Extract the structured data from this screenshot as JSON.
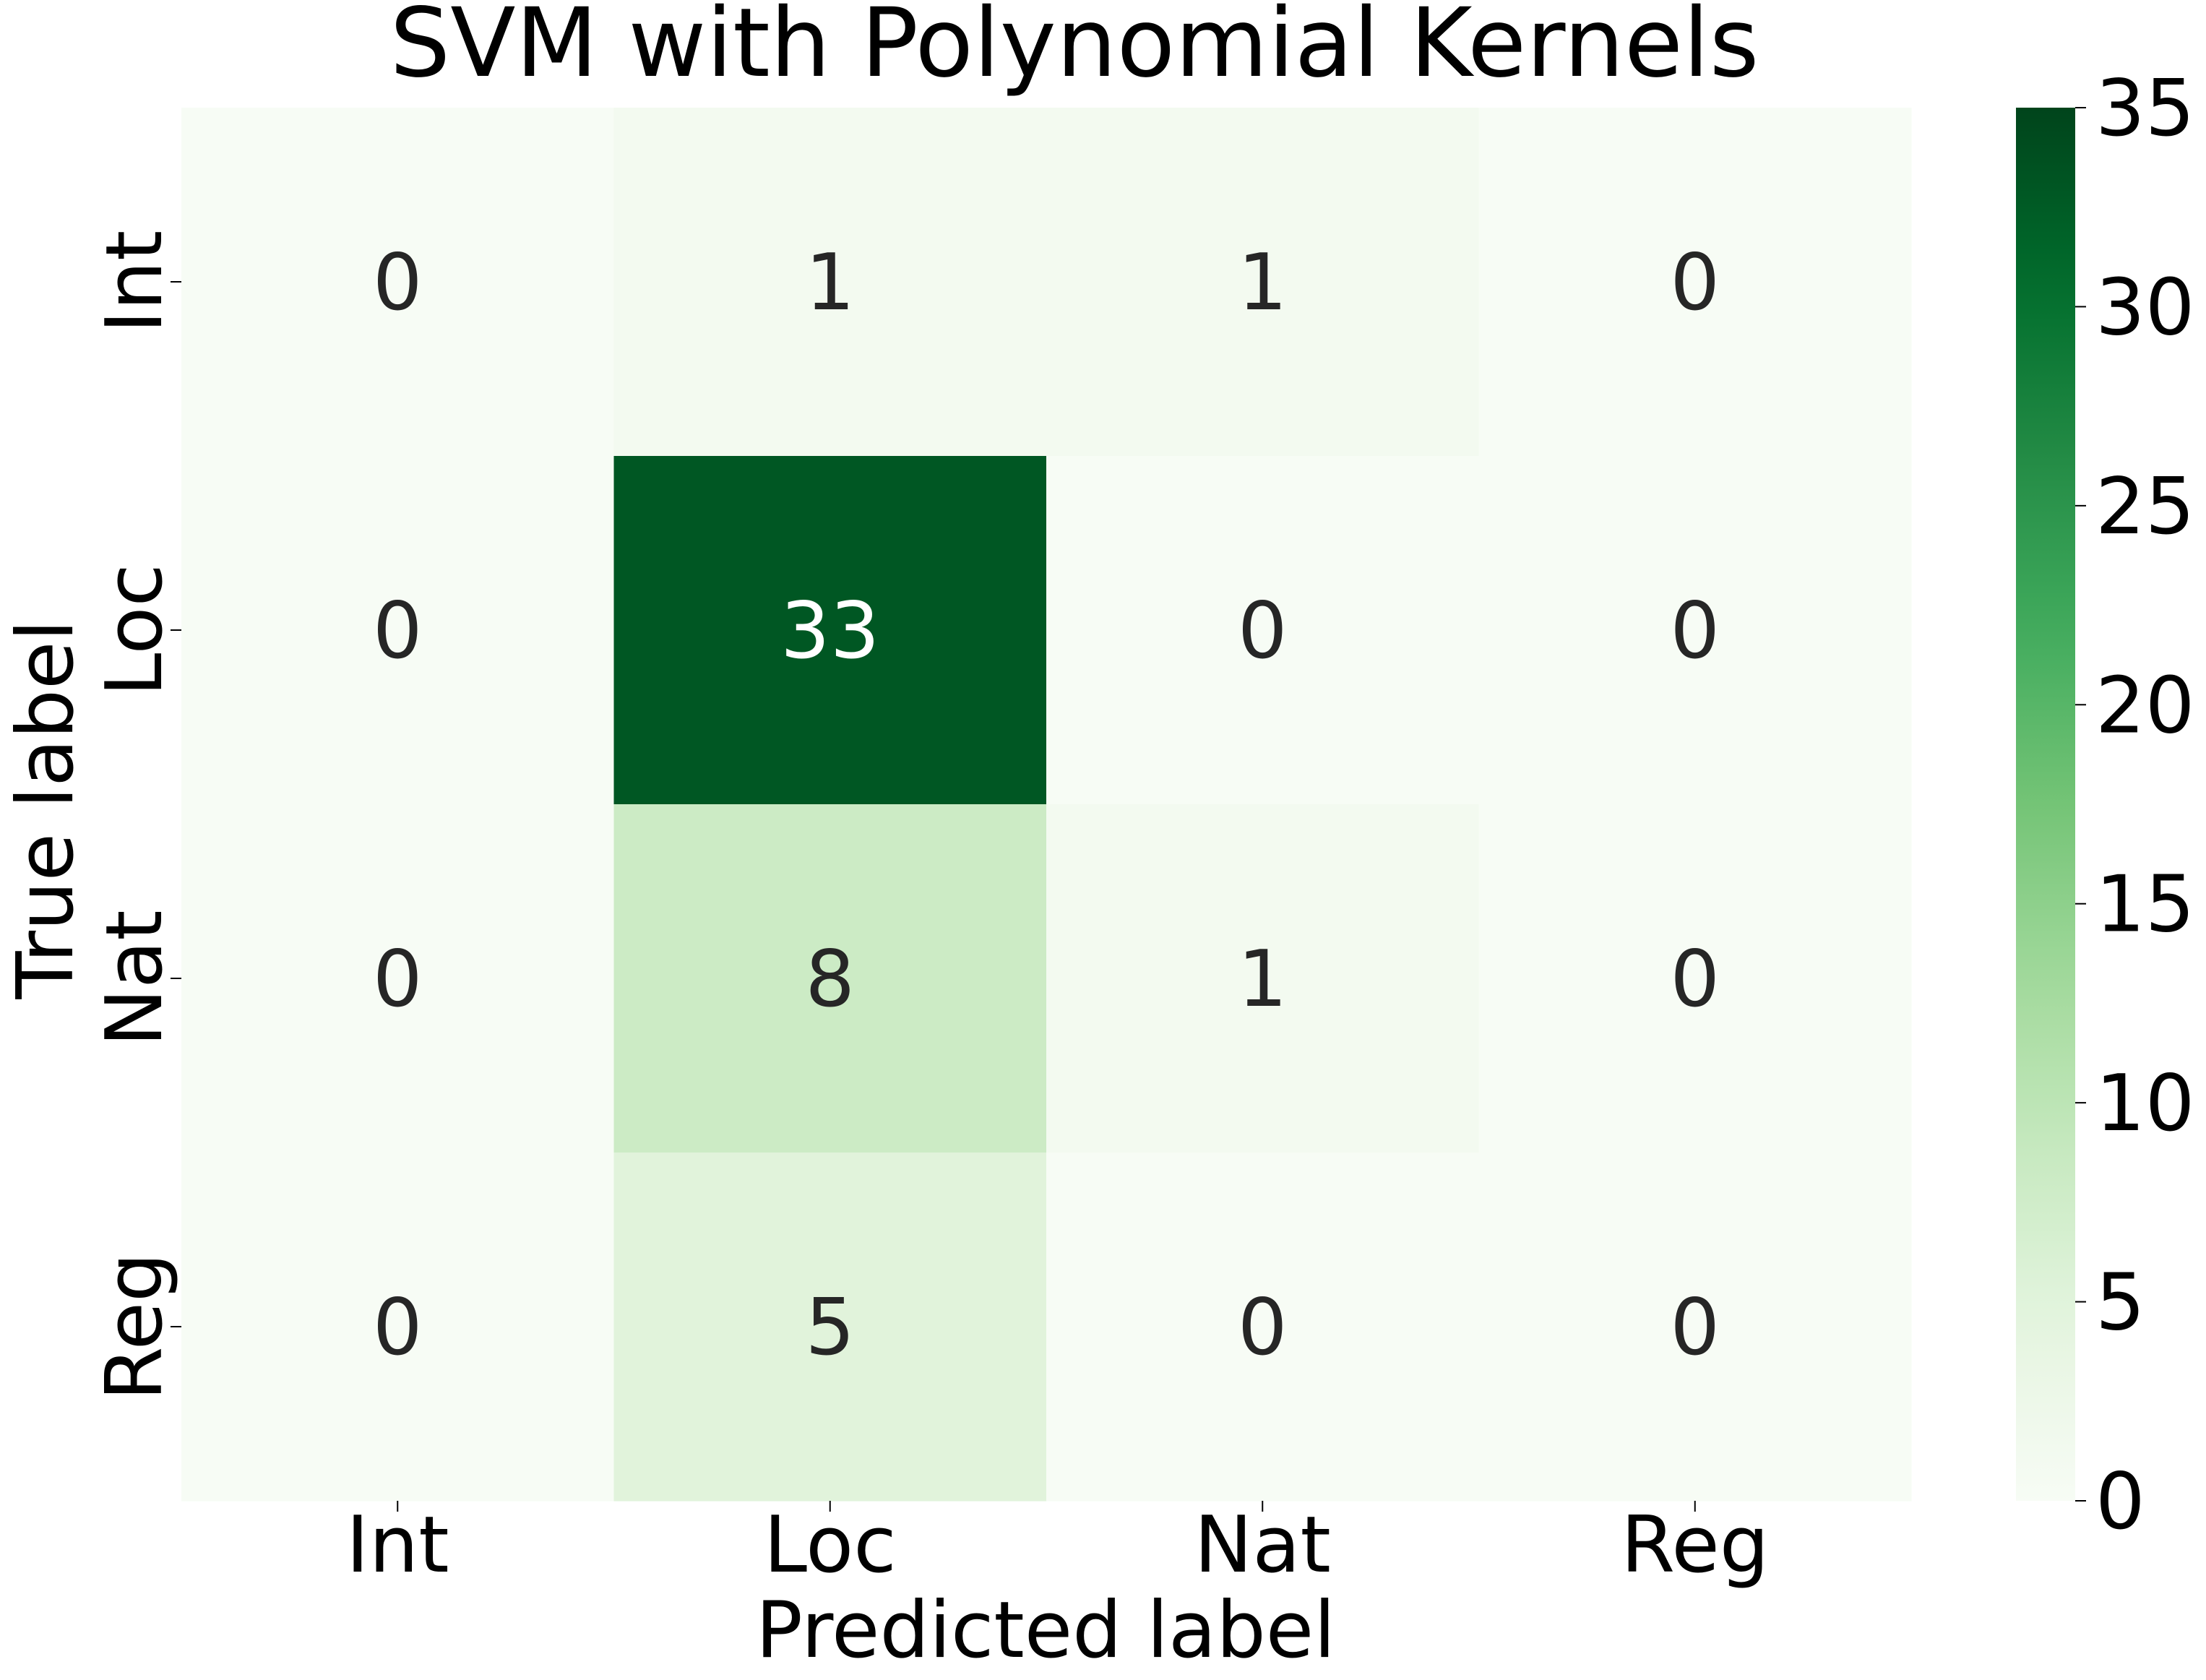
{
  "chart_data": {
    "type": "heatmap",
    "title": "SVM with Polynomial Kernels",
    "xlabel": "Predicted label",
    "ylabel": "True label",
    "x_categories": [
      "Int",
      "Loc",
      "Nat",
      "Reg"
    ],
    "y_categories": [
      "Int",
      "Loc",
      "Nat",
      "Reg"
    ],
    "values": [
      [
        0,
        1,
        1,
        0
      ],
      [
        0,
        33,
        0,
        0
      ],
      [
        0,
        8,
        1,
        0
      ],
      [
        0,
        5,
        0,
        0
      ]
    ],
    "colormap": "Greens",
    "colorbar": {
      "range": [
        0,
        35
      ],
      "ticks": [
        "0",
        "5",
        "10",
        "15",
        "20",
        "25",
        "30",
        "35"
      ]
    },
    "colors": {
      "low": "#f7fcf5",
      "high": "#00441b",
      "dark_annotation": "#262626",
      "light_annotation": "#ffffff"
    }
  }
}
